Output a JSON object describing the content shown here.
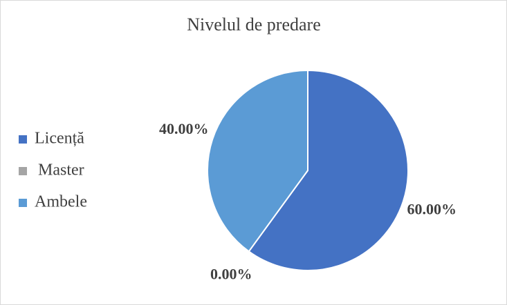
{
  "chart_data": {
    "type": "pie",
    "title": "Nivelul de predare",
    "categories": [
      "Licență",
      "Master",
      "Ambele"
    ],
    "values": [
      60,
      0,
      40
    ],
    "value_labels": [
      "60.00%",
      "0.00%",
      "40.00%"
    ],
    "colors": [
      "#4472c4",
      "#a5a5a5",
      "#5b9bd5"
    ],
    "legend": "left"
  }
}
